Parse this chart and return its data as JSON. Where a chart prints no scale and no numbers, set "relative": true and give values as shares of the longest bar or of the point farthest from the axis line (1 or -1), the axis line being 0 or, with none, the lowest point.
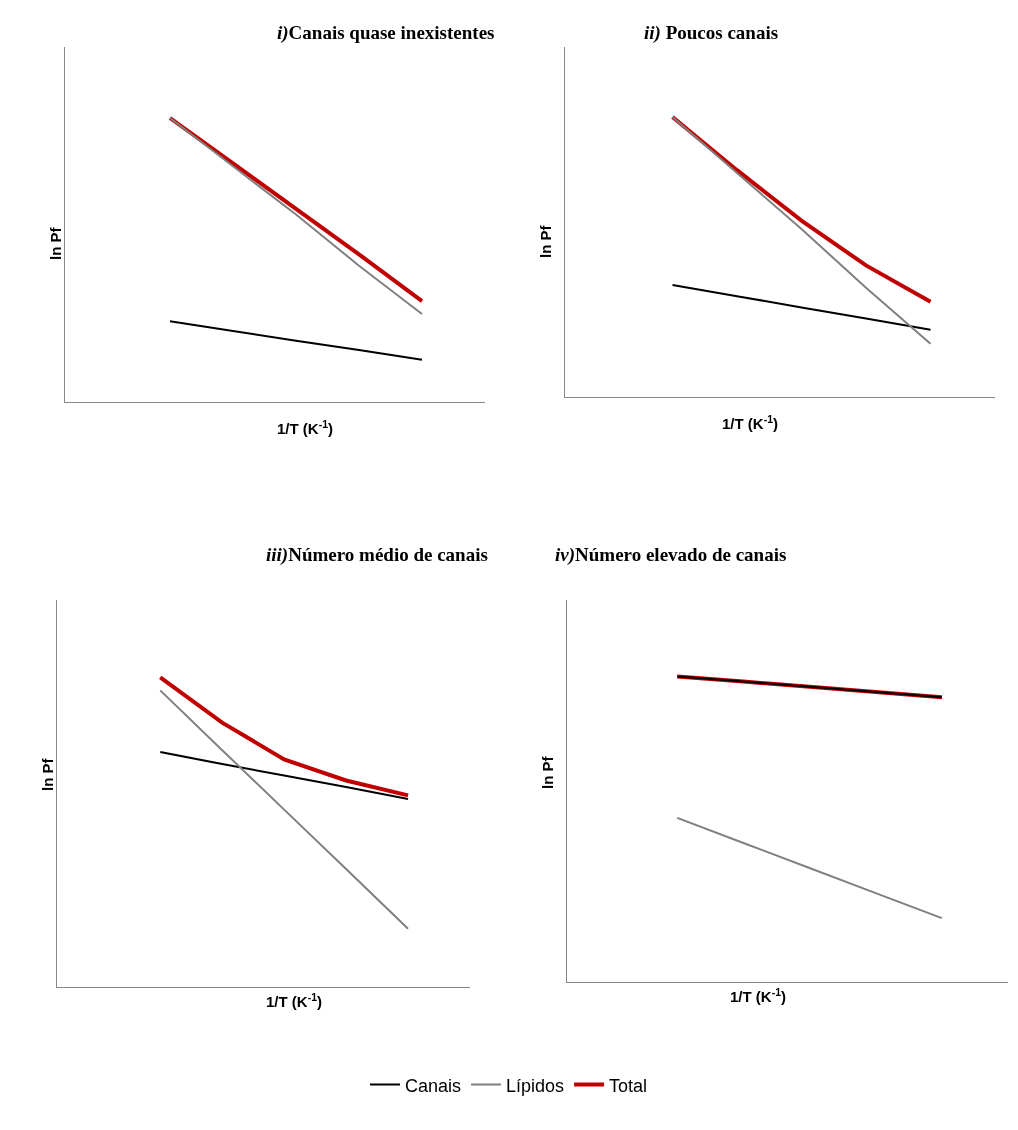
{
  "chart_data": [
    {
      "type": "line",
      "title": "i)Canais quase inexistentes",
      "xlabel": "1/T (K$^{-1}$)",
      "ylabel": "ln Pf",
      "relative": true,
      "legend": "bottom",
      "categories": [
        null,
        null,
        null,
        null,
        null
      ],
      "series": [
        {
          "name": "Canais",
          "color": "#000000",
          "values": [
            0.284,
            0.25,
            0.216,
            0.183,
            0.149
          ]
        },
        {
          "name": "Lípidos",
          "color": "#808080",
          "values": [
            1,
            0.83,
            0.66,
            0.48,
            0.31
          ]
        },
        {
          "name": "Total",
          "color": "#c00000",
          "values": [
            1,
            0.84,
            0.68,
            0.52,
            0.355
          ]
        }
      ]
    },
    {
      "type": "line",
      "title": "ii) Poucos canais",
      "xlabel": "1/T (K$^{-1}$)",
      "ylabel": "ln Pf",
      "relative": true,
      "legend": "bottom",
      "categories": [
        null,
        null,
        null,
        null,
        null
      ],
      "series": [
        {
          "name": "Canais",
          "color": "#000000",
          "values": [
            0.4,
            0.36,
            0.32,
            0.28,
            0.24
          ]
        },
        {
          "name": "Lípidos",
          "color": "#808080",
          "values": [
            1,
            0.8,
            0.6,
            0.39,
            0.19
          ]
        },
        {
          "name": "Total",
          "color": "#c00000",
          "values": [
            1,
            0.81,
            0.63,
            0.47,
            0.34
          ]
        }
      ]
    },
    {
      "type": "line",
      "title": "iii)Número médio de canais",
      "xlabel": "1/T (K$^{-1}$)",
      "ylabel": "ln Pf",
      "relative": true,
      "legend": "bottom",
      "categories": [
        null,
        null,
        null,
        null,
        null
      ],
      "series": [
        {
          "name": "Canais",
          "color": "#000000",
          "values": [
            0.759,
            0.72,
            0.683,
            0.646,
            0.607
          ]
        },
        {
          "name": "Lípidos",
          "color": "#808080",
          "values": [
            0.958,
            0.765,
            0.573,
            0.381,
            0.188
          ]
        },
        {
          "name": "Total",
          "color": "#c00000",
          "values": [
            1,
            0.854,
            0.735,
            0.667,
            0.619
          ]
        }
      ]
    },
    {
      "type": "line",
      "title": "iv)Número elevado de canais",
      "xlabel": "1/T (K$^{-1}$)",
      "ylabel": "ln Pf",
      "relative": true,
      "legend": "bottom",
      "categories": [
        null,
        null,
        null,
        null,
        null
      ],
      "series": [
        {
          "name": "Canais",
          "color": "#000000",
          "values": [
            1,
            0.983,
            0.966,
            0.949,
            0.932
          ]
        },
        {
          "name": "Lípidos",
          "color": "#808080",
          "values": [
            0.537,
            0.455,
            0.373,
            0.291,
            0.209
          ]
        },
        {
          "name": "Total",
          "color": "#c00000",
          "values": [
            1,
            0.983,
            0.966,
            0.949,
            0.932
          ]
        }
      ]
    }
  ]
}
